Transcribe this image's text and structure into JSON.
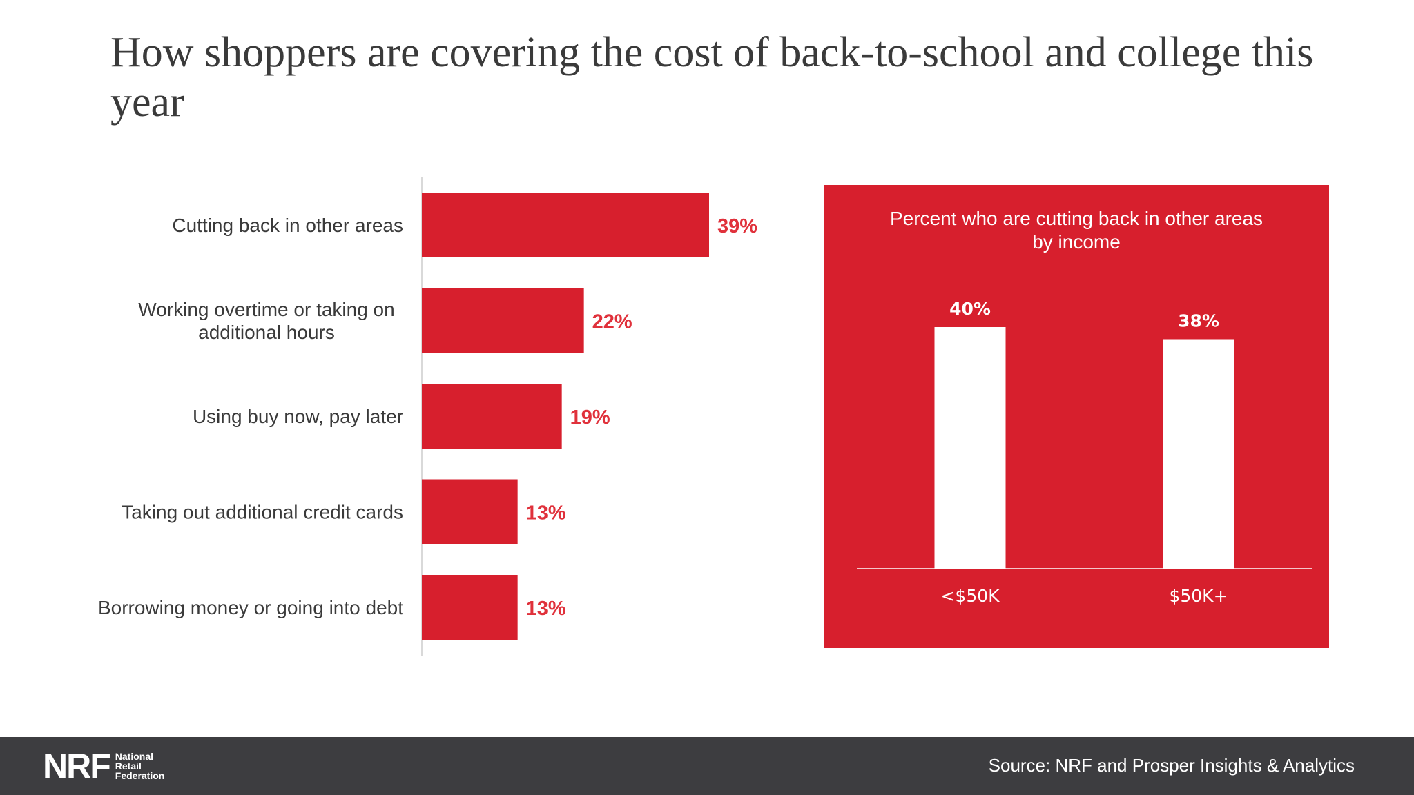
{
  "title": "How shoppers are covering the cost of back-to-school and college this year",
  "colors": {
    "accent": "#d71f2d",
    "footer": "#3d3d40",
    "label_red": "#e0313b"
  },
  "chart_data": [
    {
      "type": "bar",
      "orientation": "horizontal",
      "categories": [
        [
          "Cutting back in other areas"
        ],
        [
          "Working overtime or taking on",
          "additional hours"
        ],
        [
          "Using buy now, pay later"
        ],
        [
          "Taking out additional credit cards"
        ],
        [
          "Borrowing money or going into debt"
        ]
      ],
      "values": [
        39,
        22,
        19,
        13,
        13
      ],
      "value_labels": [
        "39%",
        "22%",
        "19%",
        "13%",
        "13%"
      ],
      "xlim": [
        0,
        100
      ],
      "grid": false
    },
    {
      "type": "bar",
      "title": "Percent who are cutting back in other areas",
      "subtitle": "by income",
      "categories": [
        "<$50K",
        "$50K+"
      ],
      "values": [
        40,
        38
      ],
      "value_labels": [
        "40%",
        "38%"
      ],
      "ylim": [
        0,
        42
      ],
      "grid": false
    }
  ],
  "footer": {
    "logo": {
      "mark": "NRF",
      "lines": [
        "National",
        "Retail",
        "Federation"
      ]
    },
    "source": "Source: NRF and Prosper Insights & Analytics"
  }
}
